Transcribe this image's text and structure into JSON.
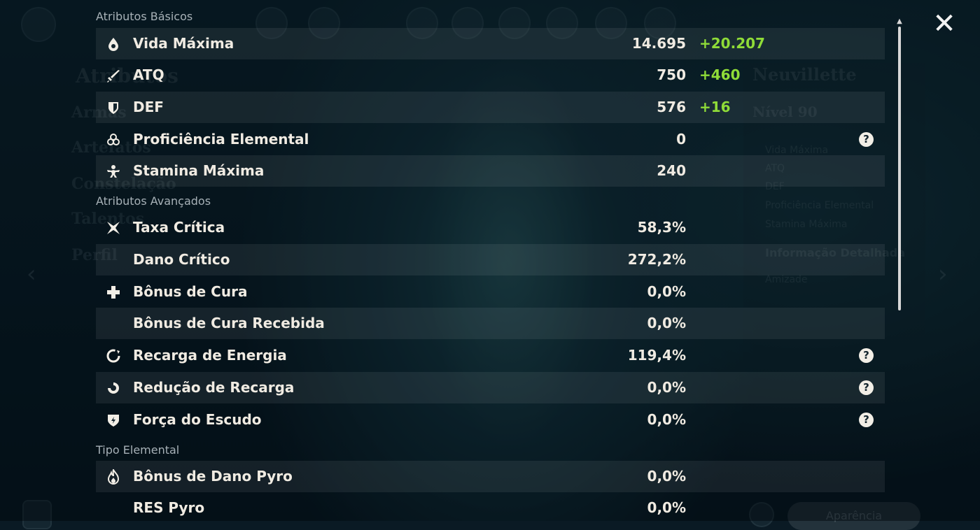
{
  "background": {
    "nav_items": [
      "Atributos",
      "Armas",
      "Artefatos",
      "Constelação",
      "Talentos",
      "Perfil"
    ],
    "character_name": "Neuvillette",
    "level": "Nível 90",
    "side_stats": [
      "Vida Máxima",
      "ATQ",
      "DEF",
      "Proficiência Elemental",
      "Stamina Máxima"
    ],
    "detail_label": "Informação Detalhada",
    "friendship_label": "Amizade",
    "appearance_button": "Aparência"
  },
  "sections": {
    "basic": {
      "title": "Atributos Básicos",
      "rows": [
        {
          "label": "Vida Máxima",
          "value": "14.695",
          "bonus": "+20.207",
          "icon": "hp-drop-icon"
        },
        {
          "label": "ATQ",
          "value": "750",
          "bonus": "+460",
          "icon": "sword-icon"
        },
        {
          "label": "DEF",
          "value": "576",
          "bonus": "+16",
          "icon": "shield-icon"
        },
        {
          "label": "Proficiência Elemental",
          "value": "0",
          "bonus": "",
          "icon": "elemental-mastery-icon",
          "help": "?"
        },
        {
          "label": "Stamina Máxima",
          "value": "240",
          "bonus": "",
          "icon": "stamina-icon"
        }
      ]
    },
    "advanced": {
      "title": "Atributos Avançados",
      "rows": [
        {
          "label": "Taxa Crítica",
          "value": "58,3%",
          "icon": "crit-star-icon"
        },
        {
          "label": "Dano Crítico",
          "value": "272,2%",
          "icon": ""
        },
        {
          "label": "Bônus de Cura",
          "value": "0,0%",
          "icon": "healing-cross-icon"
        },
        {
          "label": "Bônus de Cura Recebida",
          "value": "0,0%",
          "icon": ""
        },
        {
          "label": "Recarga de Energia",
          "value": "119,4%",
          "icon": "energy-recharge-icon",
          "help": "?"
        },
        {
          "label": "Redução de Recarga",
          "value": "0,0%",
          "icon": "cd-reduction-icon",
          "help": "?"
        },
        {
          "label": "Força do Escudo",
          "value": "0,0%",
          "icon": "shield-strength-icon",
          "help": "?"
        }
      ]
    },
    "elemental": {
      "title": "Tipo Elemental",
      "rows": [
        {
          "label": "Bônus de Dano Pyro",
          "value": "0,0%",
          "icon": "pyro-icon"
        },
        {
          "label": "RES Pyro",
          "value": "0,0%",
          "icon": ""
        }
      ]
    }
  },
  "controls": {
    "close": "✕",
    "scroll_up": "▲"
  }
}
